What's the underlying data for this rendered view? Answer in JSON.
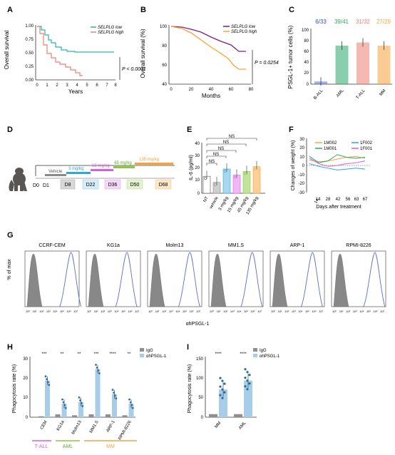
{
  "panels": {
    "A": {
      "letter": "A",
      "ylabel": "Overall survival",
      "xlabel": "Years",
      "yticks": [
        "1.00",
        "0.75",
        "0.50",
        "0.25",
        "0.00"
      ],
      "xticks": [
        "0",
        "1",
        "2",
        "3",
        "4",
        "5",
        "6",
        "7",
        "8"
      ],
      "legend": [
        "SELPLG low",
        "SELPLG high"
      ],
      "pvalue": "P < 0.0001"
    },
    "B": {
      "letter": "B",
      "ylabel": "Overall survival (%)",
      "xlabel": "Months",
      "yticks": [
        "100",
        "80",
        "60",
        "40"
      ],
      "xticks": [
        "0",
        "20",
        "40",
        "60",
        "80"
      ],
      "legend": [
        "SELPLG low",
        "SELPLG high"
      ],
      "pvalue": "P = 0.0254"
    },
    "C": {
      "letter": "C",
      "ylabel": "PSGL-1+ tumor cells (%)",
      "yticks": [
        "100",
        "80",
        "60",
        "40",
        "20",
        "0"
      ],
      "categories": [
        "B-ALL",
        "AML",
        "T-ALL",
        "MM"
      ],
      "counts": [
        "6/33",
        "39/41",
        "31/32",
        "27/29"
      ]
    },
    "D": {
      "letter": "D",
      "days": [
        "D0",
        "D1",
        "D8",
        "D22",
        "D36",
        "D50",
        "D68"
      ],
      "doses": [
        "Vehicle",
        "3 mg/kg",
        "15 mg/kg",
        "45 mg/kg",
        "135 mg/kg"
      ]
    },
    "E": {
      "letter": "E",
      "ylabel": "IL-6 (pg/ml)",
      "yticks": [
        "40",
        "30",
        "20",
        "10",
        "0"
      ],
      "categories": [
        "NT",
        "vehicle",
        "3 mg/kg",
        "15 mg/kg",
        "45 mg/kg",
        "135 mg/kg"
      ],
      "sig": "NS"
    },
    "F": {
      "letter": "F",
      "ylabel": "Changes of weight (%)",
      "xlabel": "Days after treatment",
      "yticks": [
        "30",
        "20",
        "10",
        "0",
        "-10",
        "-20",
        "-30"
      ],
      "xticks": [
        "14",
        "28",
        "42",
        "56",
        "63",
        "67"
      ],
      "legend": [
        "1M002",
        "1F002",
        "1M001",
        "1F001"
      ]
    },
    "G": {
      "letter": "G",
      "ylabel": "% of max",
      "xlabel": "αhPSGL-1",
      "cells": [
        "CCRF-CEM",
        "KG1a",
        "Molm13",
        "MM1.S",
        "ARP-1",
        "RPMI-8226"
      ],
      "xticks": [
        "10⁰",
        "10¹",
        "10²",
        "10³",
        "10⁴",
        "10⁵",
        "10⁶",
        "10⁷"
      ]
    },
    "H": {
      "letter": "H",
      "ylabel": "Phagocytosis rate (%)",
      "yticks": [
        "30",
        "20",
        "10",
        "0"
      ],
      "categories": [
        "CEM",
        "KG1a",
        "Molm13",
        "MM1.S",
        "ARP-1",
        "RPMI-8226"
      ],
      "sig": [
        "***",
        "**",
        "**",
        "***",
        "****",
        "**"
      ],
      "legend": [
        "IgG",
        "αhPSGL-1"
      ],
      "groups": [
        "T-ALL",
        "AML",
        "MM"
      ]
    },
    "I": {
      "letter": "I",
      "ylabel": "Phagocytosis rate (%)",
      "yticks": [
        "150",
        "100",
        "50",
        "0"
      ],
      "categories": [
        "MM",
        "AML"
      ],
      "sig": [
        "****",
        "****"
      ],
      "legend": [
        "IgG",
        "αhPSGL-1"
      ]
    }
  },
  "chart_data": [
    {
      "type": "line",
      "panel": "A",
      "series": [
        {
          "name": "SELPLG low",
          "x": [
            0,
            0.3,
            0.6,
            1,
            1.3,
            1.6,
            2,
            2.5,
            3,
            4,
            5,
            6,
            7,
            8
          ],
          "y": [
            1,
            0.93,
            0.82,
            0.7,
            0.62,
            0.56,
            0.5,
            0.47,
            0.44,
            0.43,
            0.43,
            0.43,
            0.43,
            0.43
          ]
        },
        {
          "name": "SELPLG high",
          "x": [
            0,
            0.3,
            0.6,
            1,
            1.3,
            1.6,
            2,
            2.5,
            3,
            3.5,
            4,
            4.5,
            5
          ],
          "y": [
            1,
            0.88,
            0.65,
            0.5,
            0.42,
            0.35,
            0.3,
            0.28,
            0.25,
            0.2,
            0.15,
            0.1,
            0.05
          ]
        }
      ],
      "xlim": [
        0,
        8
      ],
      "ylim": [
        0,
        1
      ]
    },
    {
      "type": "line",
      "panel": "B",
      "series": [
        {
          "name": "SELPLG low",
          "x": [
            0,
            10,
            20,
            30,
            40,
            50,
            60,
            70
          ],
          "y": [
            100,
            97,
            93,
            88,
            84,
            80,
            73,
            73
          ]
        },
        {
          "name": "SELPLG high",
          "x": [
            0,
            10,
            20,
            30,
            40,
            50,
            60,
            70
          ],
          "y": [
            100,
            95,
            88,
            80,
            72,
            66,
            56,
            56
          ]
        }
      ],
      "xlim": [
        0,
        80
      ],
      "ylim": [
        40,
        100
      ]
    },
    {
      "type": "bar",
      "panel": "C",
      "categories": [
        "B-ALL",
        "AML",
        "T-ALL",
        "MM"
      ],
      "values": [
        5,
        72,
        78,
        72
      ],
      "ylim": [
        0,
        100
      ]
    },
    {
      "type": "bar",
      "panel": "E",
      "categories": [
        "NT",
        "vehicle",
        "3 mg/kg",
        "15 mg/kg",
        "45 mg/kg",
        "135 mg/kg"
      ],
      "values": [
        14,
        9,
        20,
        15,
        18,
        22
      ],
      "ylim": [
        0,
        40
      ]
    },
    {
      "type": "line",
      "panel": "F",
      "series": [
        {
          "name": "1M002",
          "y": [
            6,
            4,
            5,
            7,
            9,
            10,
            8
          ]
        },
        {
          "name": "1F002",
          "y": [
            2,
            -1,
            -3,
            -5,
            -4,
            -3,
            -4
          ]
        },
        {
          "name": "1M001",
          "y": [
            10,
            3,
            5,
            12,
            9,
            8,
            9
          ]
        },
        {
          "name": "1F001",
          "y": [
            8,
            2,
            -1,
            0,
            2,
            3,
            5
          ]
        }
      ],
      "ylim": [
        -30,
        30
      ]
    },
    {
      "type": "bar",
      "panel": "H",
      "categories": [
        "CEM",
        "KG1a",
        "Molm13",
        "MM1.S",
        "ARP-1",
        "RPMI-8226"
      ],
      "series": [
        {
          "name": "IgG",
          "values": [
            0.5,
            1.5,
            1,
            1.5,
            1.5,
            1
          ]
        },
        {
          "name": "αhPSGL-1",
          "values": [
            19,
            7,
            8,
            25,
            12,
            7
          ]
        }
      ],
      "ylim": [
        0,
        30
      ]
    },
    {
      "type": "bar",
      "panel": "I",
      "categories": [
        "MM",
        "AML"
      ],
      "series": [
        {
          "name": "IgG",
          "values": [
            8,
            8
          ]
        },
        {
          "name": "αhPSGL-1",
          "values": [
            72,
            95
          ]
        }
      ],
      "ylim": [
        0,
        150
      ]
    }
  ],
  "colors": {
    "teal": "#2bb5b1",
    "salmon": "#ef7f73",
    "purple": "#7a1f84",
    "orange": "#f6a23a",
    "blue": "#5a6fd6",
    "grey": "#909090",
    "lightblue": "#a8cde8",
    "green": "#8ec63f",
    "magenta": "#d95de0",
    "cyan": "#2fa5d8"
  }
}
